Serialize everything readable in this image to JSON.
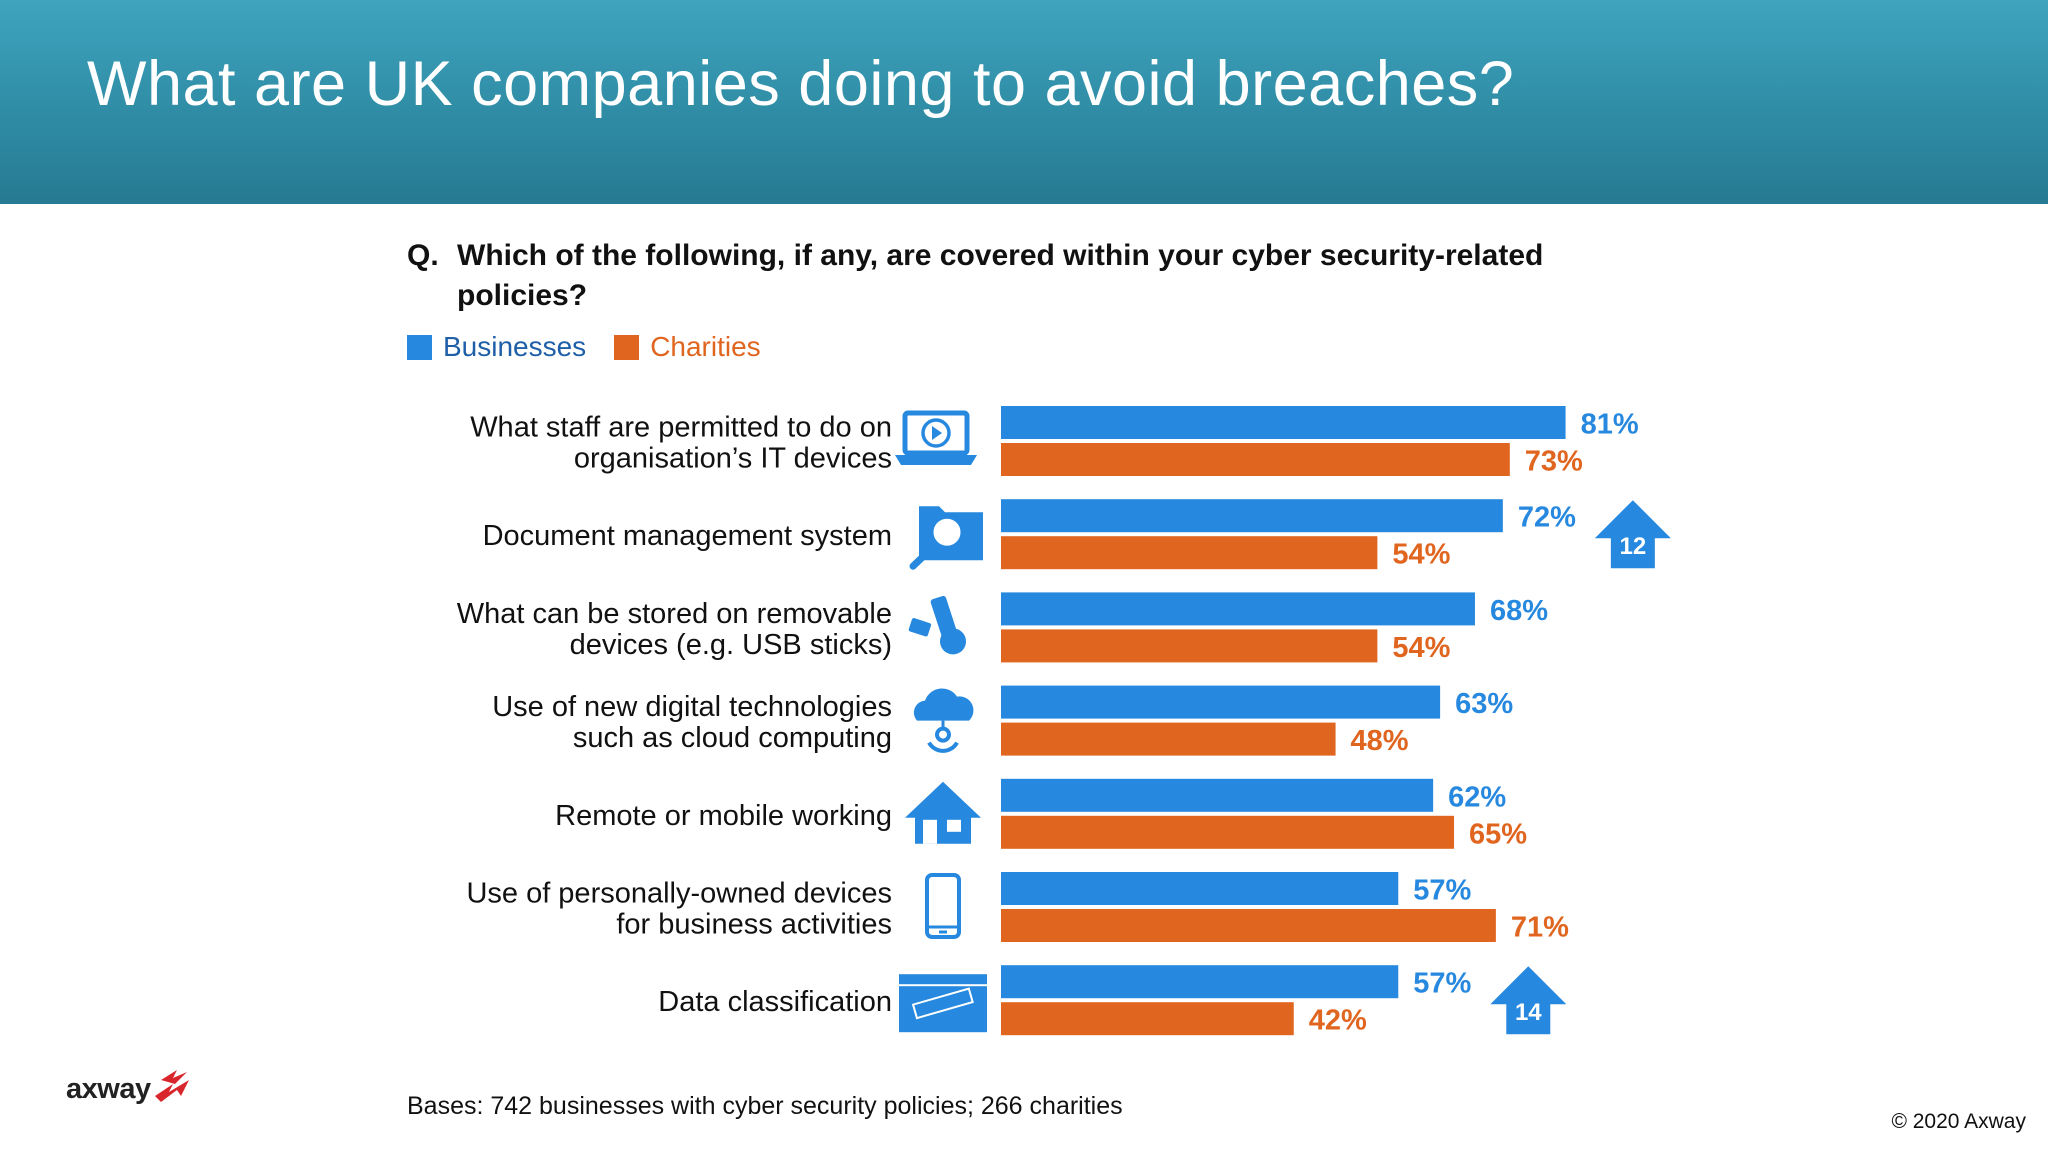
{
  "header": {
    "title": "What are UK companies doing to avoid breaches?"
  },
  "question": {
    "prefix": "Q.",
    "text": "Which of the following, if any, are covered within your cyber security-related policies?"
  },
  "legend": {
    "businesses": "Businesses",
    "charities": "Charities"
  },
  "colors": {
    "businesses": "#2688de",
    "charities": "#e0651f",
    "header": "#2e8aa3",
    "logo_accent": "#d9262c"
  },
  "chart_data": {
    "type": "bar",
    "orientation": "horizontal",
    "categories": [
      [
        "What staff are permitted to do on",
        "organisation’s IT devices"
      ],
      [
        "Document management system"
      ],
      [
        "What can be stored on removable",
        "devices (e.g. USB sticks)"
      ],
      [
        "Use of new digital technologies",
        "such as cloud computing"
      ],
      [
        "Remote or mobile working"
      ],
      [
        "Use of personally-owned devices",
        "for business activities"
      ],
      [
        "Data classification"
      ]
    ],
    "icons": [
      "laptop-play-icon",
      "folder-search-icon",
      "usb-stick-icon",
      "cloud-computing-icon",
      "house-icon",
      "mobile-phone-icon",
      "confidential-folder-icon"
    ],
    "series": [
      {
        "name": "Businesses",
        "values": [
          81,
          72,
          68,
          63,
          62,
          57,
          57
        ],
        "labels": [
          "81%",
          "72%",
          "68%",
          "63%",
          "62%",
          "57%",
          "57%"
        ]
      },
      {
        "name": "Charities",
        "values": [
          73,
          54,
          54,
          48,
          65,
          71,
          42
        ],
        "labels": [
          "73%",
          "54%",
          "54%",
          "48%",
          "65%",
          "71%",
          "42%"
        ]
      }
    ],
    "change_badges": [
      {
        "category_index": 1,
        "value": "12"
      },
      {
        "category_index": 6,
        "value": "14"
      }
    ],
    "unit": "%",
    "xlim": [
      0,
      100
    ],
    "grid": false,
    "legend_position": "top-left"
  },
  "footer": {
    "bases": "Bases: 742 businesses with cyber security policies; 266 charities",
    "copyright": "© 2020 Axway",
    "logo_text": "axway"
  }
}
